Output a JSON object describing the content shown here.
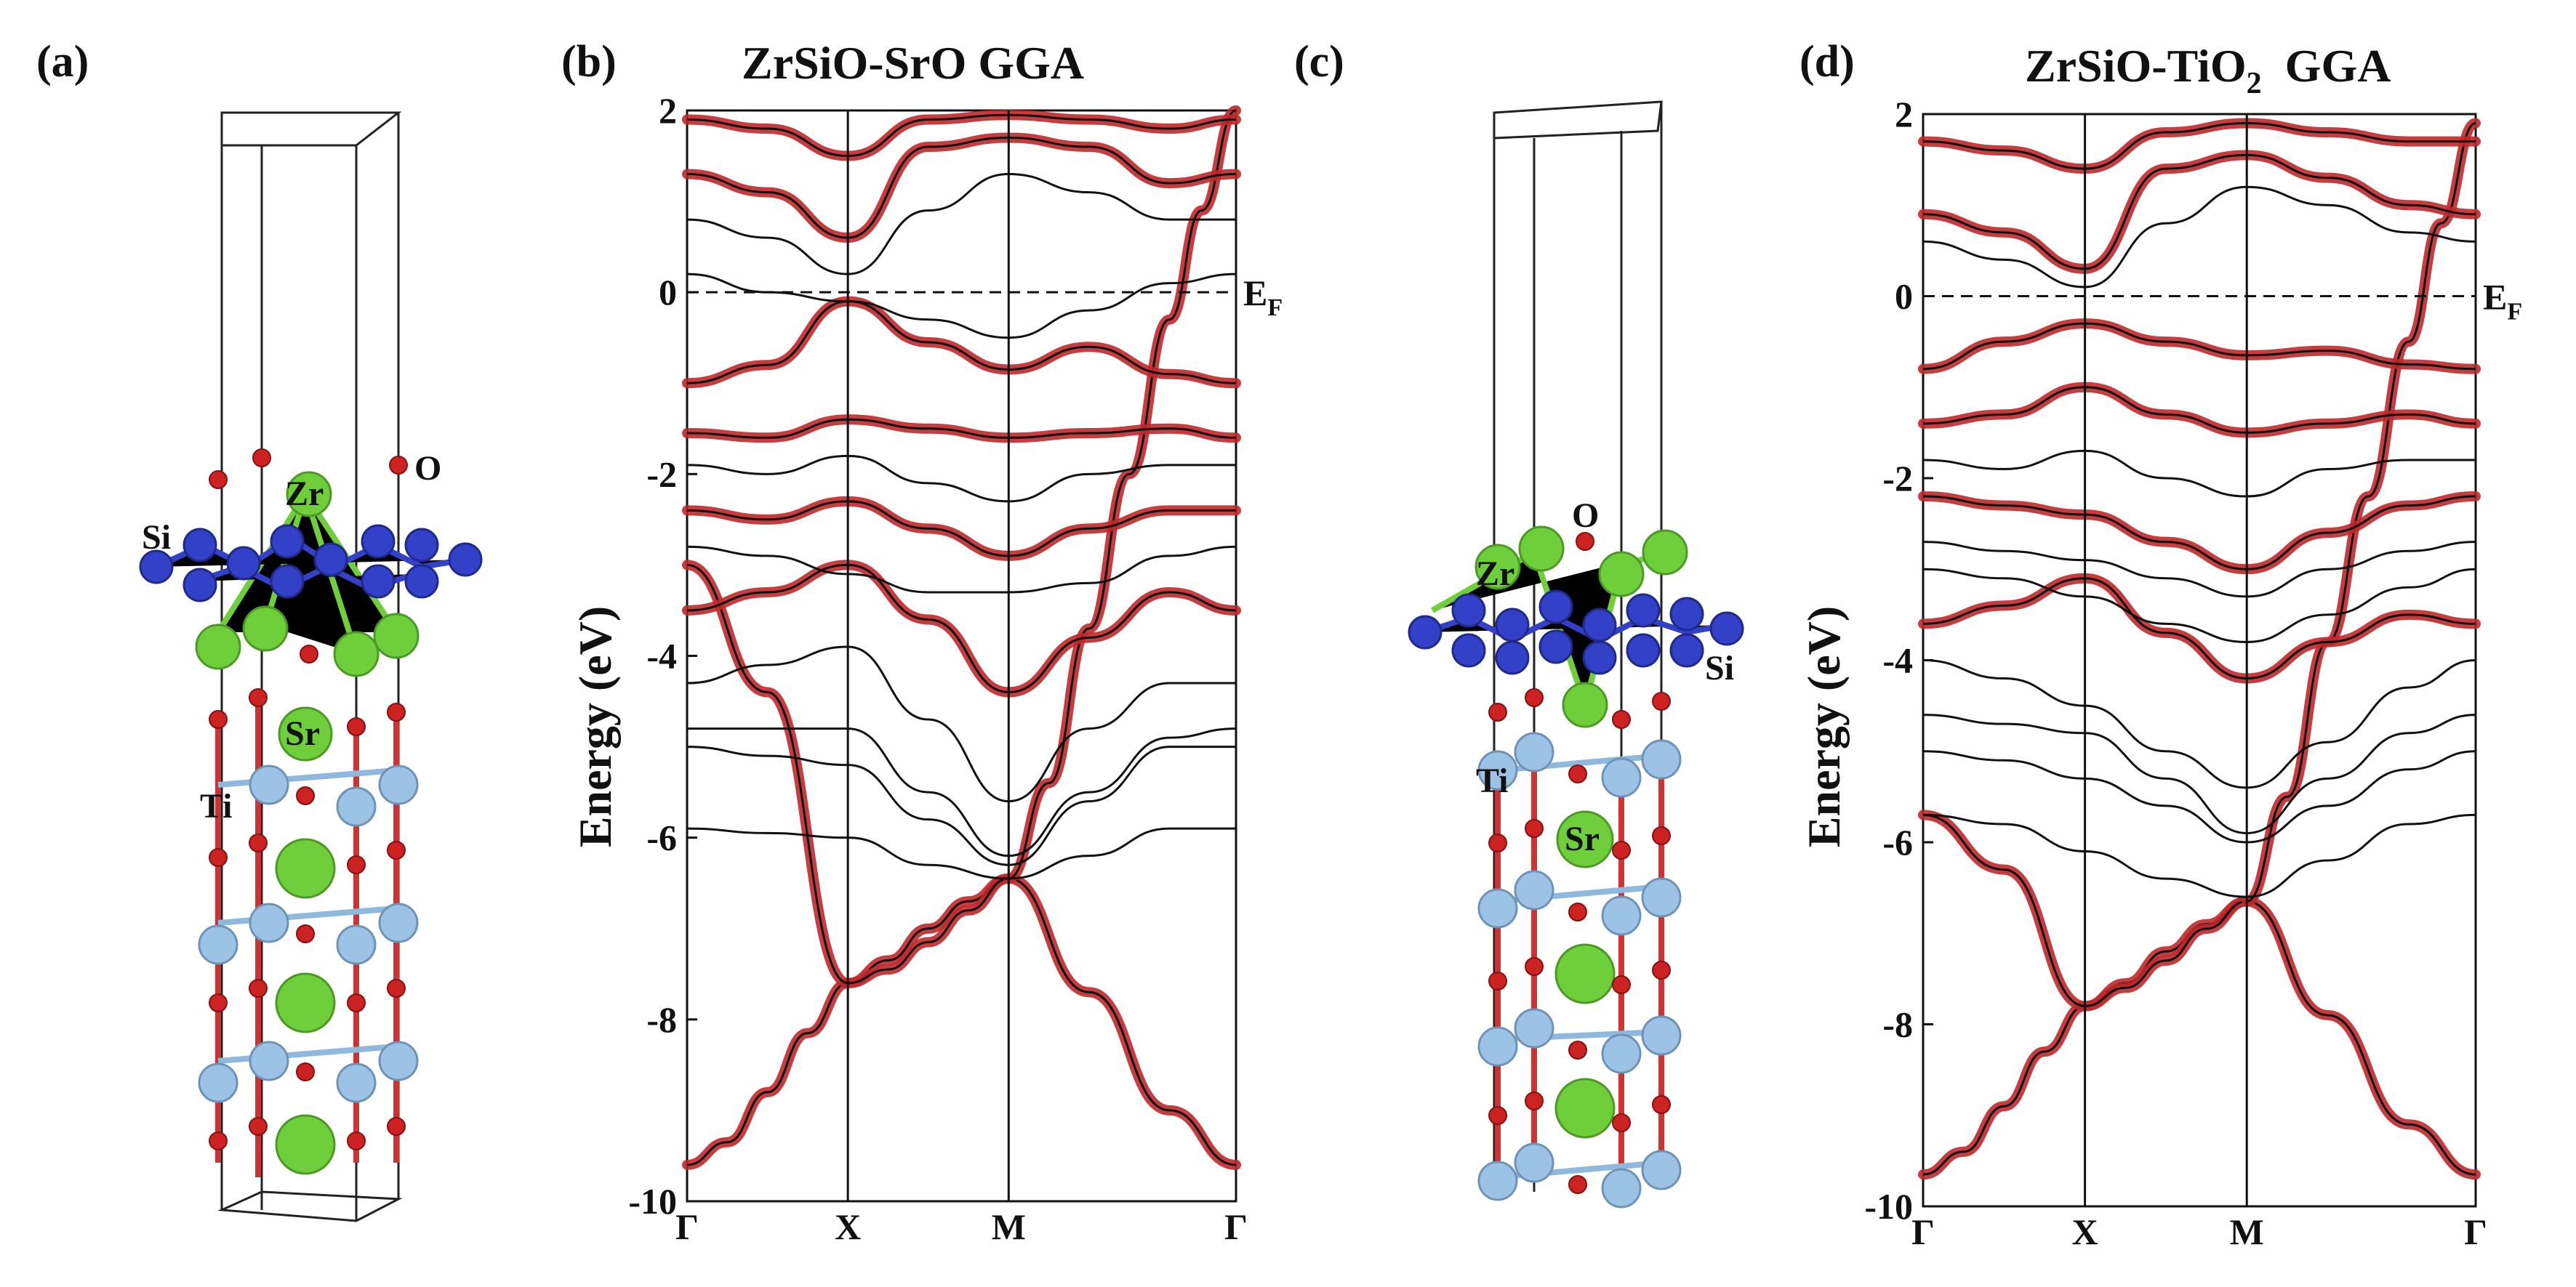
{
  "panels": {
    "a": {
      "label": "(a)",
      "atoms": {
        "o": "O",
        "zr": "Zr",
        "si": "Si",
        "sr": "Sr",
        "ti": "Ti"
      }
    },
    "b": {
      "label": "(b)"
    },
    "c": {
      "label": "(c)",
      "atoms": {
        "o": "O",
        "zr": "Zr",
        "si": "Si",
        "sr": "Sr",
        "ti": "Ti"
      }
    },
    "d": {
      "label": "(d)"
    }
  },
  "colors": {
    "band_line": "#111111",
    "projection": "#c0282a",
    "zr_atom": "#6fcf3a",
    "si_atom": "#3340c8",
    "o_atom": "#cc2222",
    "ti_atom": "#9cc3e6",
    "sr_atom": "#6fcf3a"
  },
  "chart_data": [
    {
      "type": "line",
      "panel": "b",
      "title_parts": {
        "main": "ZrSiO-SrO  GGA",
        "sub": ""
      },
      "ylabel": "Energy (eV)",
      "ylim": [
        -10,
        2
      ],
      "yticks": [
        2,
        0,
        -2,
        -4,
        -6,
        -8,
        -10
      ],
      "kpoints": [
        "Γ",
        "X",
        "M",
        "Γ"
      ],
      "kpoint_positions": [
        0,
        1,
        2,
        3.414
      ],
      "fermi_level": 0,
      "fermi_label": {
        "main": "E",
        "sub": "F"
      },
      "series": [
        {
          "name": "prominent band Γ-X-M-Γ (red)",
          "x": [
            0,
            0.25,
            0.5,
            0.75,
            1,
            1.25,
            1.5,
            1.75,
            2,
            2.5,
            3,
            3.414
          ],
          "values": [
            -9.6,
            -9.35,
            -8.8,
            -8.15,
            -7.6,
            -7.35,
            -7.0,
            -6.7,
            -6.45,
            -7.7,
            -9.0,
            -9.6
          ]
        },
        {
          "name": "band from X up (red)",
          "x": [
            0,
            0.5,
            1,
            1.25,
            1.5,
            1.75,
            2
          ],
          "values": [
            -3.0,
            -4.4,
            -7.6,
            -7.45,
            -7.15,
            -6.8,
            -6.45
          ]
        },
        {
          "name": "crossing band M-Γ (red)",
          "x": [
            2,
            2.25,
            2.5,
            2.75,
            3,
            3.2,
            3.414
          ],
          "values": [
            -6.45,
            -5.4,
            -3.7,
            -2.0,
            -0.3,
            0.9,
            2.0
          ]
        },
        {
          "name": "band near EF (red)",
          "x": [
            0,
            0.5,
            1,
            1.5,
            2,
            2.5,
            3,
            3.414
          ],
          "values": [
            -1.0,
            -0.8,
            -0.1,
            -0.55,
            -0.85,
            -0.6,
            -0.9,
            -1.0
          ]
        },
        {
          "name": "band -1.6 (red)",
          "x": [
            0,
            0.5,
            1,
            1.5,
            2,
            2.5,
            3,
            3.414
          ],
          "values": [
            -1.55,
            -1.6,
            -1.4,
            -1.5,
            -1.6,
            -1.55,
            -1.5,
            -1.6
          ]
        },
        {
          "name": "band -2.4 (red)",
          "x": [
            0,
            0.5,
            1,
            1.5,
            2,
            2.5,
            3,
            3.414
          ],
          "values": [
            -2.4,
            -2.5,
            -2.3,
            -2.6,
            -2.9,
            -2.6,
            -2.4,
            -2.4
          ]
        },
        {
          "name": "band -3.5 (red)",
          "x": [
            0,
            0.5,
            1,
            1.5,
            2,
            2.5,
            3,
            3.414
          ],
          "values": [
            -3.5,
            -3.3,
            -3.0,
            -3.6,
            -4.4,
            -3.8,
            -3.3,
            -3.5
          ]
        },
        {
          "name": "band above EF (red)",
          "x": [
            0,
            0.5,
            1,
            1.5,
            2,
            2.5,
            3,
            3.414
          ],
          "values": [
            1.3,
            1.1,
            0.6,
            1.6,
            1.7,
            1.6,
            1.2,
            1.3
          ]
        },
        {
          "name": "band top (red)",
          "x": [
            0,
            0.5,
            1,
            1.5,
            2,
            2.5,
            3,
            3.414
          ],
          "values": [
            1.9,
            1.8,
            1.5,
            1.9,
            1.95,
            1.9,
            1.8,
            1.9
          ]
        },
        {
          "name": "band -4.8 (black)",
          "x": [
            0,
            0.5,
            1,
            1.5,
            2,
            2.5,
            3,
            3.414
          ],
          "values": [
            -4.8,
            -4.8,
            -4.8,
            -5.5,
            -6.2,
            -5.5,
            -4.9,
            -4.8
          ]
        },
        {
          "name": "band -5.9 (black)",
          "x": [
            0,
            0.5,
            1,
            1.5,
            2,
            2.5,
            3,
            3.414
          ],
          "values": [
            -5.9,
            -5.95,
            -6.0,
            -6.3,
            -6.45,
            -6.2,
            -5.9,
            -5.9
          ]
        },
        {
          "name": "band -5.0 (black)",
          "x": [
            0,
            0.5,
            1,
            1.5,
            2,
            2.5,
            3,
            3.414
          ],
          "values": [
            -5.0,
            -5.1,
            -5.2,
            -5.8,
            -6.3,
            -5.6,
            -5.0,
            -5.0
          ]
        },
        {
          "name": "band -4.3 (black)",
          "x": [
            0,
            0.5,
            1,
            1.5,
            2,
            2.5,
            3,
            3.414
          ],
          "values": [
            -4.3,
            -4.1,
            -3.9,
            -4.7,
            -5.6,
            -4.8,
            -4.3,
            -4.3
          ]
        },
        {
          "name": "band -2.8 (black)",
          "x": [
            0,
            0.5,
            1,
            1.5,
            2,
            2.5,
            3,
            3.414
          ],
          "values": [
            -2.8,
            -2.9,
            -3.1,
            -3.3,
            -3.3,
            -3.2,
            -2.9,
            -2.8
          ]
        },
        {
          "name": "band 0.8 (black)",
          "x": [
            0,
            0.5,
            1,
            1.5,
            2,
            2.5,
            3,
            3.414
          ],
          "values": [
            0.8,
            0.6,
            0.2,
            0.9,
            1.3,
            1.1,
            0.8,
            0.8
          ]
        },
        {
          "name": "band 0.2 (black)",
          "x": [
            0,
            0.5,
            1,
            1.5,
            2,
            2.5,
            3,
            3.414
          ],
          "values": [
            0.2,
            0.0,
            -0.1,
            -0.3,
            -0.5,
            -0.2,
            0.1,
            0.2
          ]
        },
        {
          "name": "band -1.9 (black)",
          "x": [
            0,
            0.5,
            1,
            1.5,
            2,
            2.5,
            3,
            3.414
          ],
          "values": [
            -1.9,
            -2.0,
            -1.8,
            -2.1,
            -2.3,
            -2.0,
            -1.9,
            -1.9
          ]
        }
      ]
    },
    {
      "type": "line",
      "panel": "d",
      "title_parts": {
        "main": "ZrSiO-TiO",
        "sub": "2",
        "tail": "  GGA"
      },
      "ylabel": "Energy (eV)",
      "ylim": [
        -10,
        2
      ],
      "yticks": [
        2,
        0,
        -2,
        -4,
        -6,
        -8,
        -10
      ],
      "kpoints": [
        "Γ",
        "X",
        "M",
        "Γ"
      ],
      "kpoint_positions": [
        0,
        1,
        2,
        3.414
      ],
      "fermi_level": 0,
      "fermi_label": {
        "main": "E",
        "sub": "F"
      },
      "series": [
        {
          "name": "prominent band Γ-X-M-Γ (red)",
          "x": [
            0,
            0.25,
            0.5,
            0.75,
            1,
            1.25,
            1.5,
            1.75,
            2,
            2.5,
            3,
            3.414
          ],
          "values": [
            -9.65,
            -9.4,
            -8.9,
            -8.3,
            -7.8,
            -7.55,
            -7.2,
            -6.9,
            -6.65,
            -7.9,
            -9.1,
            -9.65
          ]
        },
        {
          "name": "band from X up (red)",
          "x": [
            0,
            0.5,
            1,
            1.25,
            1.5,
            1.75,
            2
          ],
          "values": [
            -5.7,
            -6.3,
            -7.8,
            -7.6,
            -7.3,
            -6.95,
            -6.65
          ]
        },
        {
          "name": "crossing band M-Γ (red)",
          "x": [
            2,
            2.25,
            2.5,
            2.75,
            3,
            3.2,
            3.414
          ],
          "values": [
            -6.65,
            -5.5,
            -3.8,
            -2.2,
            -0.5,
            0.8,
            1.9
          ]
        },
        {
          "name": "band near EF (red)",
          "x": [
            0,
            0.5,
            1,
            1.5,
            2,
            2.5,
            3,
            3.414
          ],
          "values": [
            -0.8,
            -0.5,
            -0.3,
            -0.5,
            -0.65,
            -0.6,
            -0.75,
            -0.8
          ]
        },
        {
          "name": "band -1.4 (red)",
          "x": [
            0,
            0.5,
            1,
            1.5,
            2,
            2.5,
            3,
            3.414
          ],
          "values": [
            -1.4,
            -1.3,
            -1.0,
            -1.3,
            -1.5,
            -1.4,
            -1.3,
            -1.4
          ]
        },
        {
          "name": "band -2.2 (red)",
          "x": [
            0,
            0.5,
            1,
            1.5,
            2,
            2.5,
            3,
            3.414
          ],
          "values": [
            -2.2,
            -2.3,
            -2.4,
            -2.7,
            -3.0,
            -2.6,
            -2.3,
            -2.2
          ]
        },
        {
          "name": "band -3.6 (red)",
          "x": [
            0,
            0.5,
            1,
            1.5,
            2,
            2.5,
            3,
            3.414
          ],
          "values": [
            -3.6,
            -3.4,
            -3.1,
            -3.7,
            -4.2,
            -3.8,
            -3.5,
            -3.6
          ]
        },
        {
          "name": "band above EF (red)",
          "x": [
            0,
            0.5,
            1,
            1.5,
            2,
            2.5,
            3,
            3.414
          ],
          "values": [
            0.9,
            0.7,
            0.3,
            1.4,
            1.55,
            1.3,
            1.0,
            0.9
          ]
        },
        {
          "name": "band top (red)",
          "x": [
            0,
            0.5,
            1,
            1.5,
            2,
            2.5,
            3,
            3.414
          ],
          "values": [
            1.7,
            1.6,
            1.4,
            1.8,
            1.9,
            1.8,
            1.7,
            1.7
          ]
        },
        {
          "name": "band -4.6 (black)",
          "x": [
            0,
            0.5,
            1,
            1.5,
            2,
            2.5,
            3,
            3.414
          ],
          "values": [
            -4.6,
            -4.7,
            -4.8,
            -5.3,
            -5.9,
            -5.3,
            -4.8,
            -4.6
          ]
        },
        {
          "name": "band -5.7 (black)",
          "x": [
            0,
            0.5,
            1,
            1.5,
            2,
            2.5,
            3,
            3.414
          ],
          "values": [
            -5.7,
            -5.8,
            -6.1,
            -6.4,
            -6.6,
            -6.2,
            -5.8,
            -5.7
          ]
        },
        {
          "name": "band -4.0 (black)",
          "x": [
            0,
            0.5,
            1,
            1.5,
            2,
            2.5,
            3,
            3.414
          ],
          "values": [
            -4.0,
            -4.2,
            -4.5,
            -5.0,
            -5.4,
            -4.9,
            -4.3,
            -4.0
          ]
        },
        {
          "name": "band -3.0 (black)",
          "x": [
            0,
            0.5,
            1,
            1.5,
            2,
            2.5,
            3,
            3.414
          ],
          "values": [
            -3.0,
            -3.1,
            -3.3,
            -3.6,
            -3.8,
            -3.5,
            -3.2,
            -3.0
          ]
        },
        {
          "name": "band -2.7 (black)",
          "x": [
            0,
            0.5,
            1,
            1.5,
            2,
            2.5,
            3,
            3.414
          ],
          "values": [
            -2.7,
            -2.8,
            -2.9,
            -3.1,
            -3.3,
            -3.0,
            -2.8,
            -2.7
          ]
        },
        {
          "name": "band 0.6 (black)",
          "x": [
            0,
            0.5,
            1,
            1.5,
            2,
            2.5,
            3,
            3.414
          ],
          "values": [
            0.6,
            0.4,
            0.1,
            0.8,
            1.2,
            1.0,
            0.7,
            0.6
          ]
        },
        {
          "name": "band -1.8 (black)",
          "x": [
            0,
            0.5,
            1,
            1.5,
            2,
            2.5,
            3,
            3.414
          ],
          "values": [
            -1.8,
            -1.9,
            -1.7,
            -2.0,
            -2.2,
            -1.9,
            -1.8,
            -1.8
          ]
        },
        {
          "name": "band -5.0 (black)",
          "x": [
            0,
            0.5,
            1,
            1.5,
            2,
            2.5,
            3,
            3.414
          ],
          "values": [
            -5.0,
            -5.1,
            -5.3,
            -5.6,
            -6.0,
            -5.6,
            -5.2,
            -5.0
          ]
        }
      ]
    }
  ]
}
